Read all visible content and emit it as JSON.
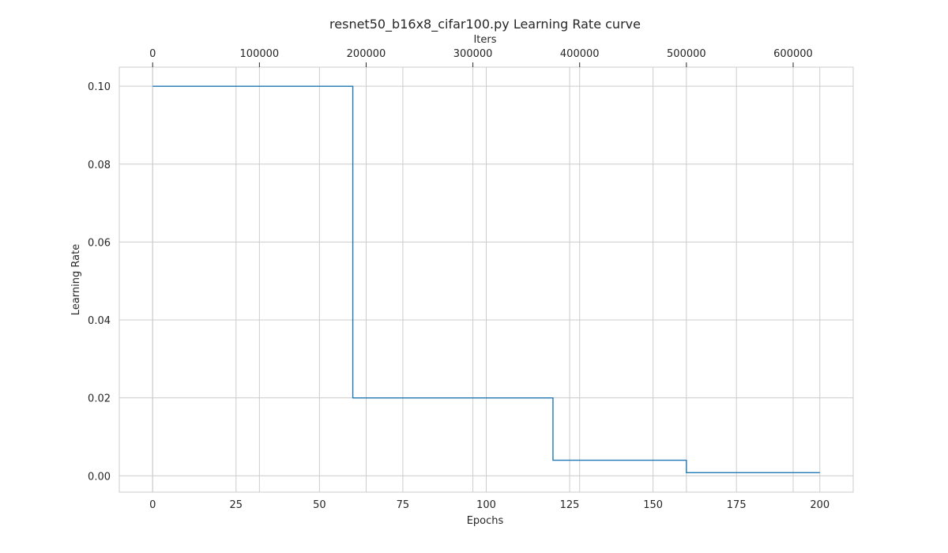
{
  "chart_data": {
    "type": "line",
    "title": "resnet50_b16x8_cifar100.py Learning Rate curve",
    "xlabel": "Epochs",
    "ylabel": "Learning Rate",
    "top_xlabel": "Iters",
    "xlim": [
      -10,
      210
    ],
    "ylim": [
      -0.0042,
      0.1049
    ],
    "x_ticks": [
      0,
      25,
      50,
      75,
      100,
      125,
      150,
      175,
      200
    ],
    "x_tick_labels": [
      "0",
      "25",
      "50",
      "75",
      "100",
      "125",
      "150",
      "175",
      "200"
    ],
    "y_ticks": [
      0.0,
      0.02,
      0.04,
      0.06,
      0.08,
      0.1
    ],
    "y_tick_labels": [
      "0.00",
      "0.02",
      "0.04",
      "0.06",
      "0.08",
      "0.10"
    ],
    "top_x_ticks": [
      0,
      100000,
      200000,
      300000,
      400000,
      500000,
      600000
    ],
    "top_x_tick_labels": [
      "0",
      "100000",
      "200000",
      "300000",
      "400000",
      "500000",
      "600000"
    ],
    "iters_per_epoch": 3125,
    "grid": true,
    "series": [
      {
        "style": "step",
        "color": "#1f77b4",
        "x": [
          0,
          60,
          60,
          120,
          120,
          160,
          160,
          200
        ],
        "y": [
          0.1,
          0.1,
          0.02,
          0.02,
          0.004,
          0.004,
          0.0008,
          0.0008
        ]
      }
    ]
  }
}
